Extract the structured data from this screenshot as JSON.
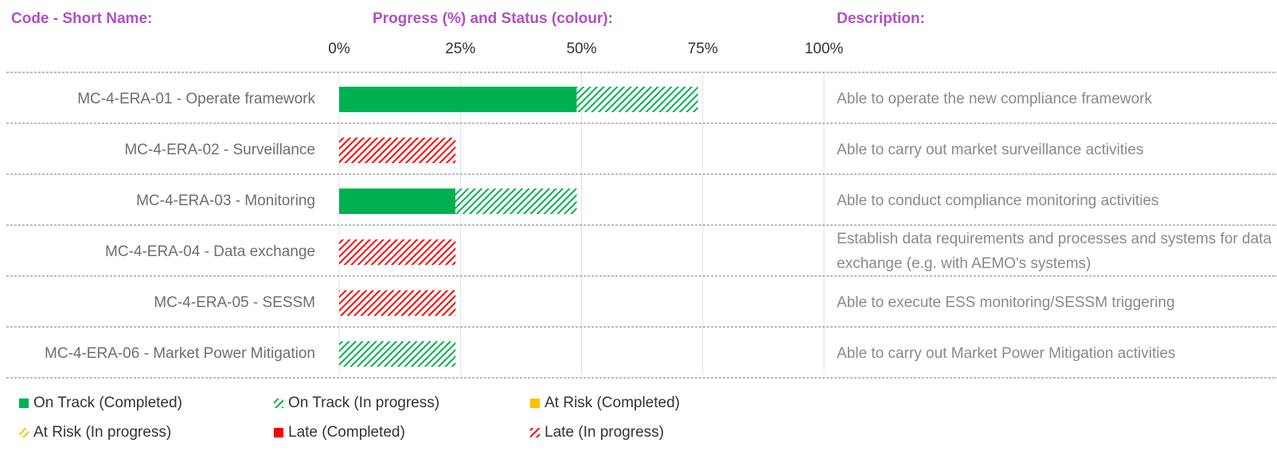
{
  "chart_data": {
    "type": "bar",
    "orientation": "horizontal",
    "stacked": true,
    "headers": [
      "Code - Short Name:",
      "Progress (%) and Status (colour):",
      "Description:"
    ],
    "categories": [
      "MC-4-ERA-01 - Operate framework",
      "MC-4-ERA-02 - Surveillance",
      "MC-4-ERA-03 - Monitoring",
      "MC-4-ERA-04 - Data exchange",
      "MC-4-ERA-05 - SESSM",
      "MC-4-ERA-06 - Market Power Mitigation"
    ],
    "descriptions": [
      "Able to operate the new compliance framework",
      "Able to carry out market surveillance activities",
      "Able to conduct compliance monitoring activities",
      "Establish data requirements and processes and systems for data exchange (e.g. with AEMO's systems)",
      "Able to execute ESS monitoring/SESSM triggering",
      "Able to carry out Market Power Mitigation activities"
    ],
    "series": [
      {
        "name": "On Track (Completed)",
        "color": "#00b050",
        "hatched": false,
        "values": [
          49,
          null,
          24,
          null,
          null,
          null
        ]
      },
      {
        "name": "On Track (In progress)",
        "color": "#00b050",
        "hatched": true,
        "values": [
          25,
          null,
          25,
          null,
          null,
          24
        ]
      },
      {
        "name": "At Risk (Completed)",
        "color": "#ffc000",
        "hatched": false,
        "values": [
          null,
          null,
          null,
          null,
          null,
          null
        ]
      },
      {
        "name": "At Risk (In progress)",
        "color": "#ffc000",
        "hatched": true,
        "values": [
          null,
          null,
          null,
          null,
          null,
          null
        ]
      },
      {
        "name": "Late (Completed)",
        "color": "#ff0000",
        "hatched": false,
        "values": [
          null,
          null,
          null,
          null,
          null,
          null
        ]
      },
      {
        "name": "Late (In progress)",
        "color": "#ff0000",
        "hatched": true,
        "values": [
          null,
          24,
          null,
          24,
          24,
          null
        ]
      }
    ],
    "xlim": [
      0,
      100
    ],
    "xticks": [
      {
        "value": 0,
        "label": "0%"
      },
      {
        "value": 25,
        "label": "25%"
      },
      {
        "value": 50,
        "label": "50%"
      },
      {
        "value": 75,
        "label": "75%"
      },
      {
        "value": 100,
        "label": "100%"
      }
    ],
    "grid": true
  }
}
